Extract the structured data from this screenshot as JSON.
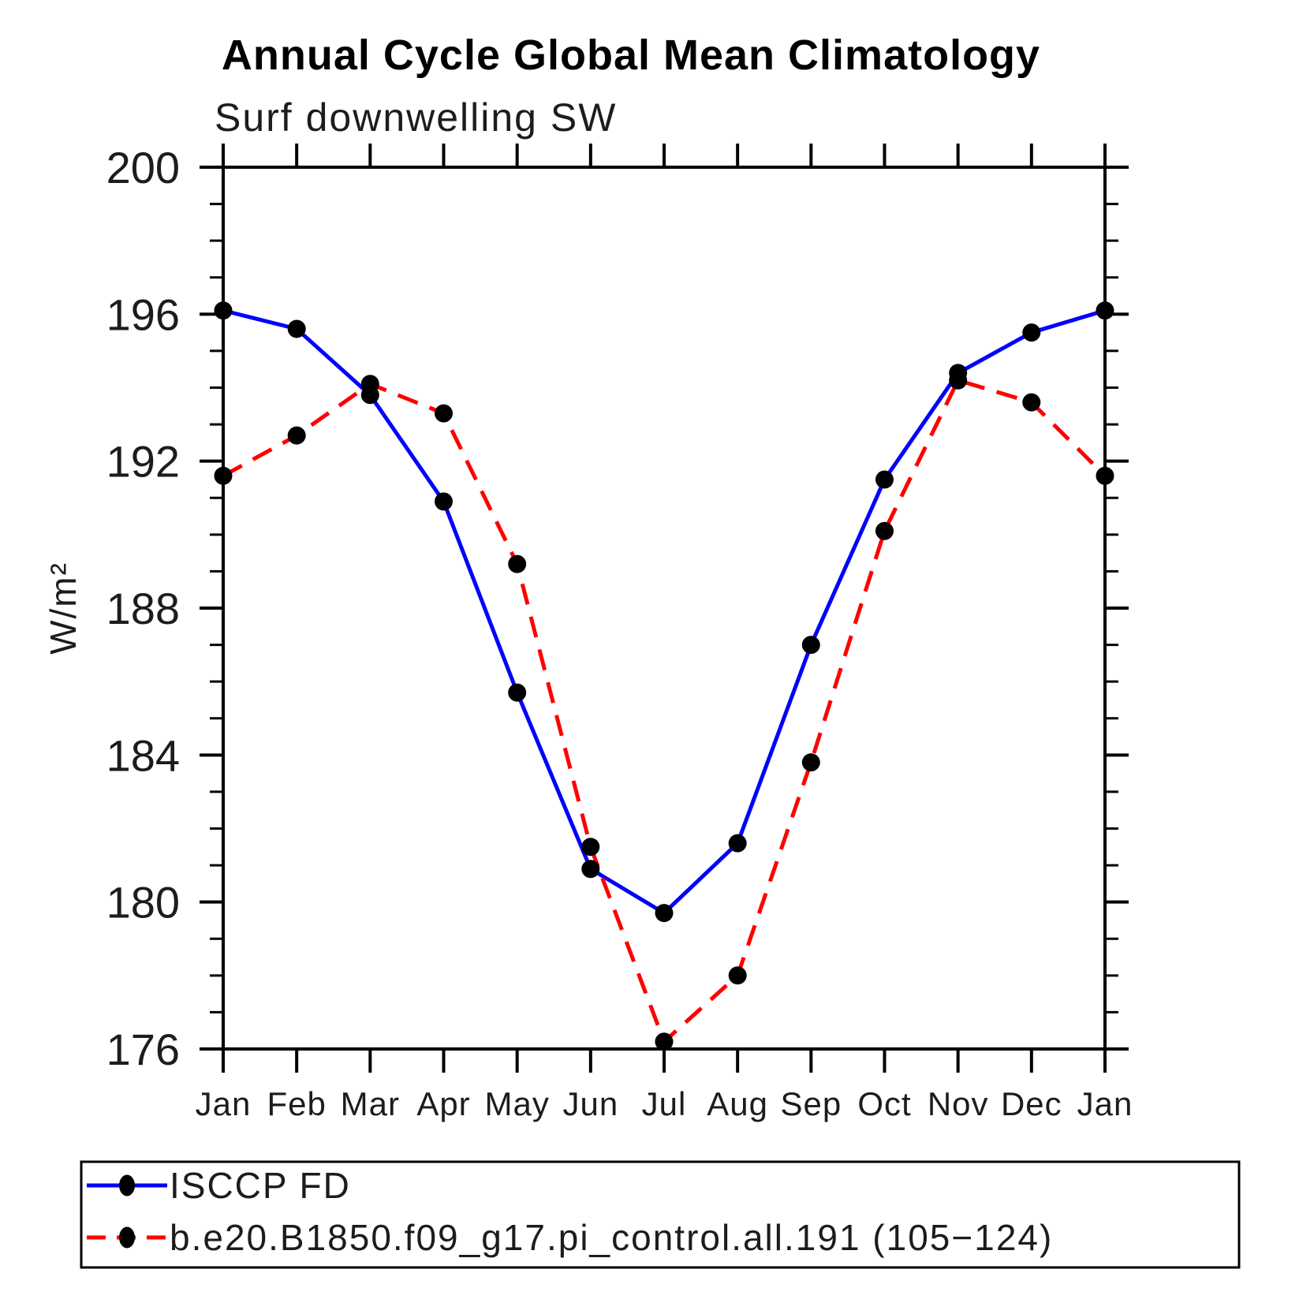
{
  "title": "Annual Cycle Global Mean Climatology",
  "subtitle": "Surf downwelling SW",
  "colors": {
    "obs_line": "#0000ff",
    "model_line": "#ff0000",
    "marker": "#000000",
    "axis": "#000000"
  },
  "chart_data": {
    "type": "line",
    "title": "Annual Cycle Global Mean Climatology",
    "subtitle": "Surf downwelling SW",
    "xlabel": "",
    "ylabel": "W/m²",
    "x_ticklabels": [
      "Jan",
      "Feb",
      "Mar",
      "Apr",
      "May",
      "Jun",
      "Jul",
      "Aug",
      "Sep",
      "Oct",
      "Nov",
      "Dec",
      "Jan"
    ],
    "ylim": [
      176,
      200
    ],
    "ytick_major_step": 4,
    "ytick_minor_step": 1,
    "grid": false,
    "legend_position": "bottom",
    "series": [
      {
        "name": "ISCCP FD",
        "color": "#0000ff",
        "line_style": "solid",
        "marker": "filled-circle",
        "marker_color": "#000000",
        "values": [
          196.1,
          195.6,
          193.8,
          190.9,
          185.7,
          180.9,
          179.7,
          181.6,
          187.0,
          191.5,
          194.4,
          195.5,
          196.1
        ]
      },
      {
        "name": "b.e20.B1850.f09_g17.pi_control.all.191 (105−124)",
        "color": "#ff0000",
        "line_style": "dashed",
        "marker": "filled-circle",
        "marker_color": "#000000",
        "values": [
          191.6,
          192.7,
          194.1,
          193.3,
          189.2,
          181.5,
          176.2,
          178.0,
          183.8,
          190.1,
          194.2,
          193.6,
          191.6
        ]
      }
    ]
  }
}
